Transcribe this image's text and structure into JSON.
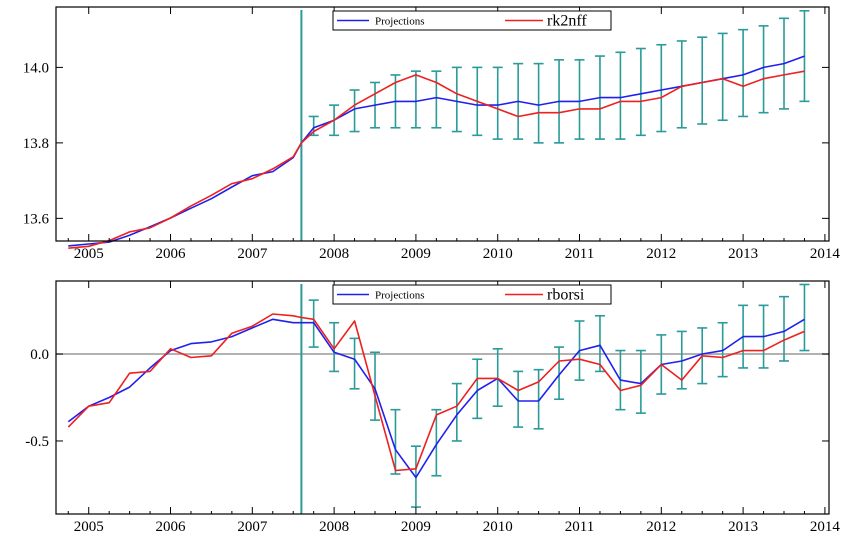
{
  "chart_data": [
    {
      "type": "line",
      "title": "",
      "xlabel": "",
      "ylabel": "",
      "xlim": [
        2004.6,
        2014.05
      ],
      "ylim": [
        13.54,
        14.16
      ],
      "x_ticks": [
        2005,
        2006,
        2007,
        2008,
        2009,
        2010,
        2011,
        2012,
        2013,
        2014
      ],
      "x_tick_labels": [
        "2005",
        "2006",
        "2007",
        "2008",
        "2009",
        "2010",
        "2011",
        "2012",
        "2013",
        "2014"
      ],
      "y_ticks": [
        13.6,
        13.8,
        14.0
      ],
      "y_tick_labels": [
        "13.6",
        "13.8",
        "14.0"
      ],
      "forecast_start": 2007.6,
      "zero_line": null,
      "legend": {
        "placement": "top-center",
        "projections_label": "Projections",
        "series_label": "rk2nff"
      },
      "series": [
        {
          "name": "Projections",
          "color": "#2020ee",
          "x": [
            2004.75,
            2005.0,
            2005.25,
            2005.5,
            2005.75,
            2006.0,
            2006.25,
            2006.5,
            2006.75,
            2007.0,
            2007.25,
            2007.5,
            2007.6,
            2007.75,
            2008.0,
            2008.25,
            2008.5,
            2008.75,
            2009.0,
            2009.25,
            2009.5,
            2009.75,
            2010.0,
            2010.25,
            2010.5,
            2010.75,
            2011.0,
            2011.25,
            2011.5,
            2011.75,
            2012.0,
            2012.25,
            2012.5,
            2012.75,
            2013.0,
            2013.25,
            2013.5,
            2013.75
          ],
          "values": [
            13.527,
            13.532,
            13.537,
            13.555,
            13.578,
            13.601,
            13.627,
            13.652,
            13.683,
            13.713,
            13.724,
            13.761,
            13.8,
            13.84,
            13.86,
            13.89,
            13.9,
            13.91,
            13.91,
            13.92,
            13.91,
            13.9,
            13.9,
            13.91,
            13.9,
            13.91,
            13.91,
            13.92,
            13.92,
            13.93,
            13.94,
            13.95,
            13.96,
            13.97,
            13.98,
            14.0,
            14.01,
            14.03
          ]
        },
        {
          "name": "rk2nff",
          "color": "#ee2020",
          "x": [
            2004.75,
            2005.0,
            2005.25,
            2005.5,
            2005.75,
            2006.0,
            2006.25,
            2006.5,
            2006.75,
            2007.0,
            2007.25,
            2007.5,
            2007.6,
            2007.75,
            2008.0,
            2008.25,
            2008.5,
            2008.75,
            2009.0,
            2009.25,
            2009.5,
            2009.75,
            2010.0,
            2010.25,
            2010.5,
            2010.75,
            2011.0,
            2011.25,
            2011.5,
            2011.75,
            2012.0,
            2012.25,
            2012.5,
            2012.75,
            2013.0,
            2013.25,
            2013.5,
            2013.75
          ],
          "values": [
            13.521,
            13.526,
            13.541,
            13.564,
            13.575,
            13.601,
            13.633,
            13.661,
            13.692,
            13.705,
            13.731,
            13.763,
            13.8,
            13.83,
            13.86,
            13.9,
            13.93,
            13.96,
            13.98,
            13.96,
            13.93,
            13.91,
            13.89,
            13.87,
            13.88,
            13.88,
            13.89,
            13.89,
            13.91,
            13.91,
            13.92,
            13.95,
            13.96,
            13.97,
            13.95,
            13.97,
            13.98,
            13.99
          ]
        }
      ],
      "error_bars": {
        "x": [
          2007.75,
          2008.0,
          2008.25,
          2008.5,
          2008.75,
          2009.0,
          2009.25,
          2009.5,
          2009.75,
          2010.0,
          2010.25,
          2010.5,
          2010.75,
          2011.0,
          2011.25,
          2011.5,
          2011.75,
          2012.0,
          2012.25,
          2012.5,
          2012.75,
          2013.0,
          2013.25,
          2013.5,
          2013.75
        ],
        "low": [
          13.82,
          13.82,
          13.83,
          13.84,
          13.84,
          13.84,
          13.84,
          13.83,
          13.82,
          13.81,
          13.81,
          13.8,
          13.8,
          13.81,
          13.81,
          13.81,
          13.82,
          13.83,
          13.84,
          13.85,
          13.86,
          13.87,
          13.88,
          13.89,
          13.91
        ],
        "high": [
          13.87,
          13.9,
          13.94,
          13.96,
          13.98,
          13.99,
          13.99,
          14.0,
          14.0,
          14.0,
          14.01,
          14.01,
          14.02,
          14.02,
          14.03,
          14.04,
          14.05,
          14.06,
          14.07,
          14.08,
          14.09,
          14.1,
          14.11,
          14.13,
          14.15
        ]
      }
    },
    {
      "type": "line",
      "title": "",
      "xlabel": "",
      "ylabel": "",
      "xlim": [
        2004.6,
        2014.05
      ],
      "ylim": [
        -0.92,
        0.42
      ],
      "x_ticks": [
        2005,
        2006,
        2007,
        2008,
        2009,
        2010,
        2011,
        2012,
        2013,
        2014
      ],
      "x_tick_labels": [
        "2005",
        "2006",
        "2007",
        "2008",
        "2009",
        "2010",
        "2011",
        "2012",
        "2013",
        "2014"
      ],
      "y_ticks": [
        -0.5,
        0.0
      ],
      "y_tick_labels": [
        "-0.5",
        "0.0"
      ],
      "forecast_start": 2007.6,
      "zero_line": 0.0,
      "legend": {
        "placement": "top-center",
        "projections_label": "Projections",
        "series_label": "rborsi"
      },
      "series": [
        {
          "name": "Projections",
          "color": "#2020ee",
          "x": [
            2004.75,
            2005.0,
            2005.25,
            2005.5,
            2005.75,
            2006.0,
            2006.25,
            2006.5,
            2006.75,
            2007.0,
            2007.25,
            2007.5,
            2007.6,
            2007.75,
            2008.0,
            2008.25,
            2008.5,
            2008.75,
            2009.0,
            2009.25,
            2009.5,
            2009.75,
            2010.0,
            2010.25,
            2010.5,
            2010.75,
            2011.0,
            2011.25,
            2011.5,
            2011.75,
            2012.0,
            2012.25,
            2012.5,
            2012.75,
            2013.0,
            2013.25,
            2013.5,
            2013.75
          ],
          "values": [
            -0.39,
            -0.3,
            -0.25,
            -0.19,
            -0.08,
            0.02,
            0.06,
            0.07,
            0.1,
            0.15,
            0.2,
            0.18,
            0.18,
            0.18,
            0.01,
            -0.03,
            -0.2,
            -0.55,
            -0.71,
            -0.52,
            -0.35,
            -0.21,
            -0.14,
            -0.27,
            -0.27,
            -0.12,
            0.02,
            0.05,
            -0.15,
            -0.17,
            -0.06,
            -0.04,
            0.0,
            0.02,
            0.1,
            0.1,
            0.13,
            0.2
          ]
        },
        {
          "name": "rborsi",
          "color": "#ee2020",
          "x": [
            2004.75,
            2005.0,
            2005.25,
            2005.5,
            2005.75,
            2006.0,
            2006.25,
            2006.5,
            2006.75,
            2007.0,
            2007.25,
            2007.5,
            2007.6,
            2007.75,
            2008.0,
            2008.25,
            2008.5,
            2008.75,
            2009.0,
            2009.25,
            2009.5,
            2009.75,
            2010.0,
            2010.25,
            2010.5,
            2010.75,
            2011.0,
            2011.25,
            2011.5,
            2011.75,
            2012.0,
            2012.25,
            2012.5,
            2012.75,
            2013.0,
            2013.25,
            2013.5,
            2013.75
          ],
          "values": [
            -0.42,
            -0.3,
            -0.28,
            -0.11,
            -0.1,
            0.03,
            -0.02,
            -0.01,
            0.12,
            0.16,
            0.23,
            0.22,
            0.21,
            0.2,
            0.03,
            0.19,
            -0.24,
            -0.67,
            -0.66,
            -0.35,
            -0.3,
            -0.14,
            -0.14,
            -0.21,
            -0.16,
            -0.04,
            -0.03,
            -0.06,
            -0.21,
            -0.18,
            -0.06,
            -0.15,
            -0.01,
            -0.02,
            0.02,
            0.02,
            0.08,
            0.13
          ]
        }
      ],
      "error_bars": {
        "x": [
          2007.75,
          2008.0,
          2008.25,
          2008.5,
          2008.75,
          2009.0,
          2009.25,
          2009.5,
          2009.75,
          2010.0,
          2010.25,
          2010.5,
          2010.75,
          2011.0,
          2011.25,
          2011.5,
          2011.75,
          2012.0,
          2012.25,
          2012.5,
          2012.75,
          2013.0,
          2013.25,
          2013.5,
          2013.75
        ],
        "low": [
          0.04,
          -0.1,
          -0.2,
          -0.38,
          -0.69,
          -0.88,
          -0.7,
          -0.5,
          -0.37,
          -0.3,
          -0.42,
          -0.43,
          -0.26,
          -0.15,
          -0.1,
          -0.32,
          -0.34,
          -0.23,
          -0.2,
          -0.17,
          -0.13,
          -0.08,
          -0.08,
          -0.04,
          0.02
        ],
        "high": [
          0.31,
          0.18,
          0.09,
          0.01,
          -0.32,
          -0.53,
          -0.32,
          -0.17,
          -0.03,
          0.03,
          -0.1,
          -0.09,
          0.04,
          0.19,
          0.22,
          0.02,
          0.02,
          0.11,
          0.13,
          0.15,
          0.18,
          0.28,
          0.28,
          0.33,
          0.4
        ]
      }
    }
  ],
  "colors": {
    "projections": "#2020ee",
    "actual": "#ee2020",
    "error_bars": "#2a9a9a",
    "forecast_line": "#2a9a9a",
    "zero_line": "#999999",
    "frame": "#000000"
  }
}
